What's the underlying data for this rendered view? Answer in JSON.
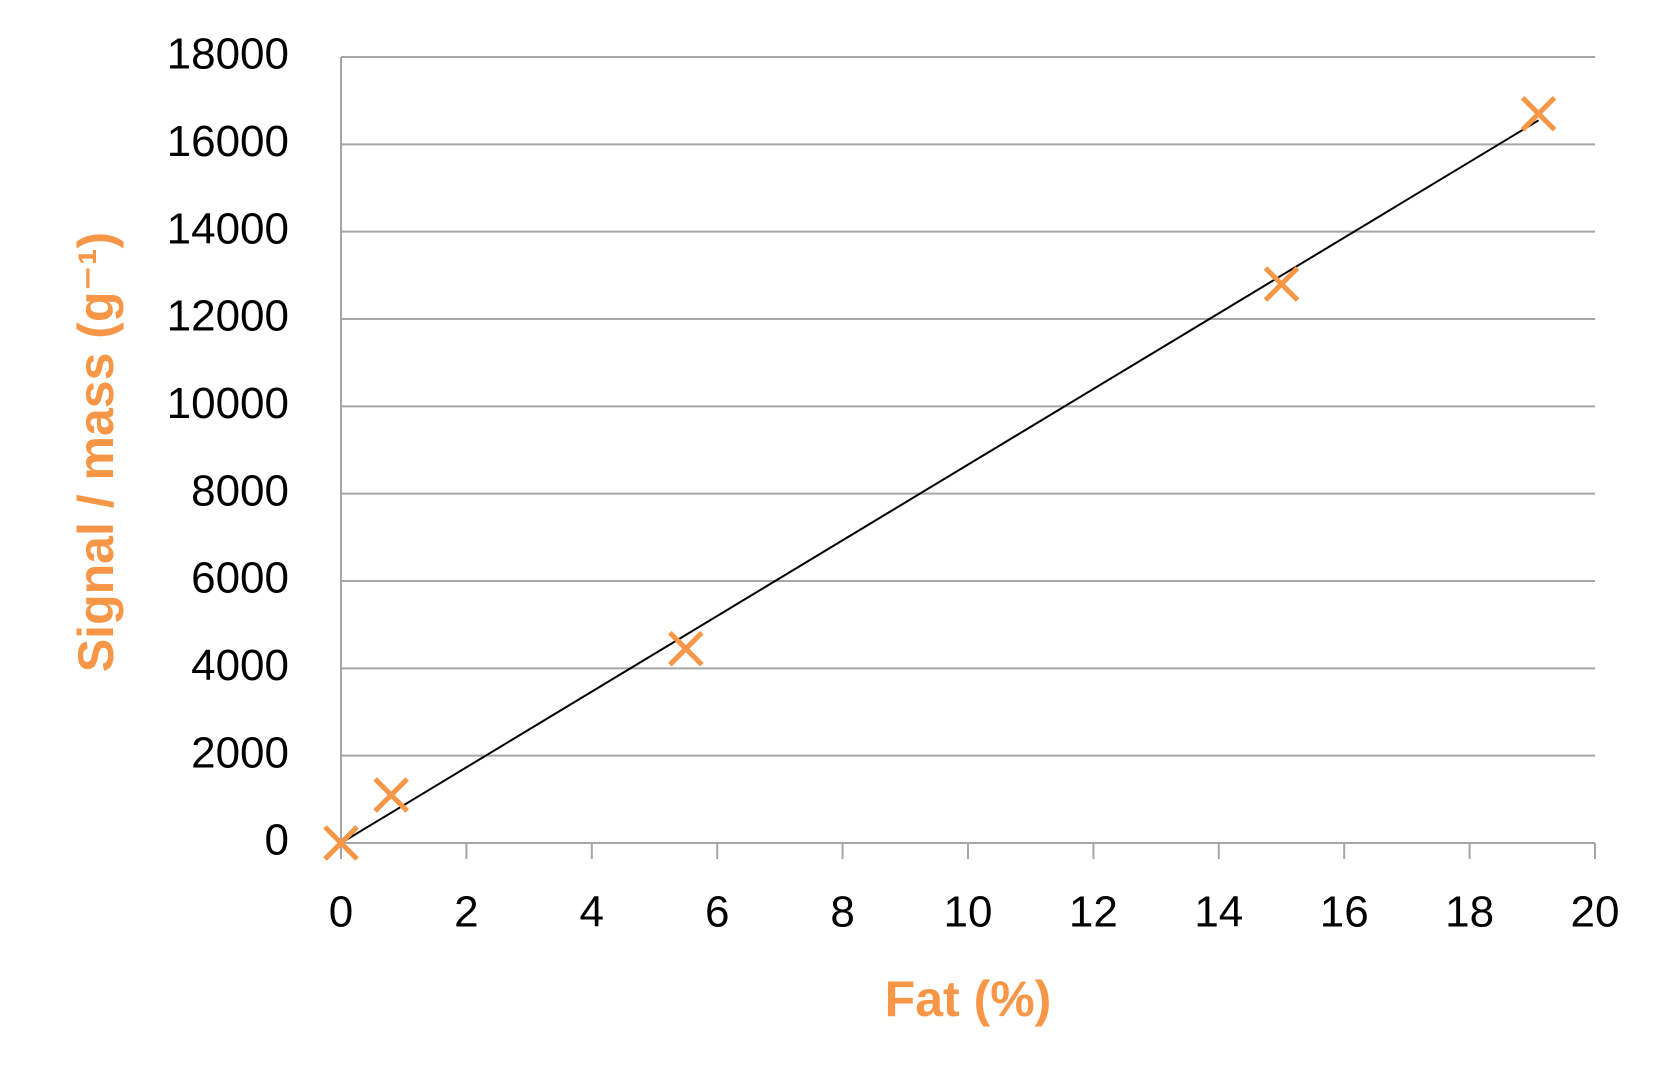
{
  "chart_data": {
    "type": "scatter",
    "xlabel": "Fat (%)",
    "ylabel": "Signal / mass (g⁻¹)",
    "series": [
      {
        "x": [
          0,
          0.8,
          5.5,
          15,
          19.1
        ],
        "values": [
          0,
          1100,
          4450,
          12800,
          16700
        ],
        "color": "#f79646"
      }
    ],
    "trendline": {
      "x": [
        0,
        19.1
      ],
      "values": [
        0,
        16550
      ],
      "color": "#000000"
    },
    "xlim": [
      0,
      20
    ],
    "xticks": [
      0,
      2,
      4,
      6,
      8,
      10,
      12,
      14,
      16,
      18,
      20
    ],
    "ylim": [
      0,
      18000
    ],
    "yticks": [
      0,
      2000,
      4000,
      6000,
      8000,
      10000,
      12000,
      14000,
      16000,
      18000
    ],
    "grid": true
  }
}
